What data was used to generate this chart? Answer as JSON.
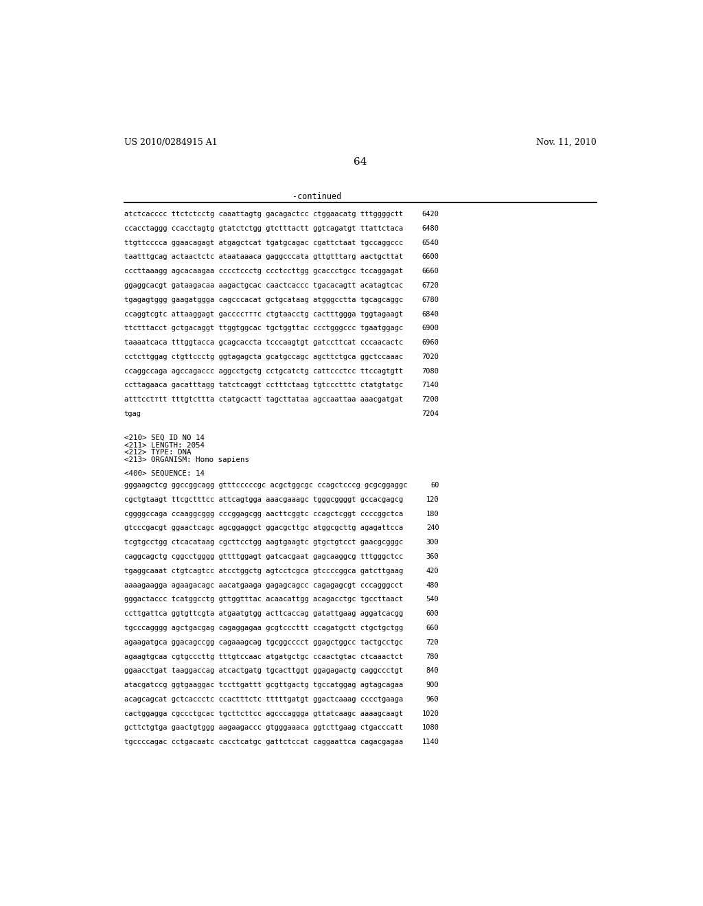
{
  "header_left": "US 2010/0284915 A1",
  "header_right": "Nov. 11, 2010",
  "page_number": "64",
  "continued_label": "-continued",
  "background_color": "#ffffff",
  "text_color": "#000000",
  "sequence_lines_top": [
    [
      "atctcacccc ttctctcctg caaattagtg gacagactcc ctggaacatg tttggggctt",
      "6420"
    ],
    [
      "ccacctaggg ccacctagtg gtatctctgg gtctttactt ggtcagatgt ttattctaca",
      "6480"
    ],
    [
      "ttgttcccca ggaacagagt atgagctcat tgatgcagac cgattctaat tgccaggccc",
      "6540"
    ],
    [
      "taatttgcag actaactctc ataataaaca gaggcccata gttgtttатg aactgcttat",
      "6600"
    ],
    [
      "cccttaaagg agcacaagaa cccctccctg ccctccttgg gcaccctgcc tccaggagat",
      "6660"
    ],
    [
      "ggaggcacgt gataagacaa aagactgcac caactcaccc tgacacagtt acatagtcac",
      "6720"
    ],
    [
      "tgagagtggg gaagatggga cagcccacat gctgcataag atgggcctta tgcagcaggc",
      "6780"
    ],
    [
      "ccaggtcgtc attaaggagt gaccccтттс ctgtaacctg cactttggga tggtagaagt",
      "6840"
    ],
    [
      "ttctttacct gctgacaggt ttggtggcac tgctggttac ccctgggccc tgaatggagc",
      "6900"
    ],
    [
      "taaaatcaca tttggtacca gcagcaccta tcccaagtgt gatccttcat cccaacactc",
      "6960"
    ],
    [
      "cctcttggag ctgttccctg ggtagagcta gcatgccagc agcttctgca ggctccaaac",
      "7020"
    ],
    [
      "ccaggccaga agccagaccc aggcctgctg cctgcatctg cattccctcc ttccagtgtt",
      "7080"
    ],
    [
      "ccttagaaca gacatttagg tatctcaggt cctttctaag tgtccctttc ctatgtatgc",
      "7140"
    ],
    [
      "atttcctтtt tttgtcttta ctatgcactt tagcttataa agccaattaa aaacgatgat",
      "7200"
    ],
    [
      "tgag",
      "7204"
    ]
  ],
  "metadata_lines": [
    "<210> SEQ ID NO 14",
    "<211> LENGTH: 2054",
    "<212> TYPE: DNA",
    "<213> ORGANISM: Homo sapiens"
  ],
  "sequence_label": "<400> SEQUENCE: 14",
  "sequence_lines_bottom": [
    [
      "gggaagctcg ggccggcagg gtttcccccgc acgctggcgc ccagctcccg gcgcggaggc",
      "60"
    ],
    [
      "cgctgtaagt ttcgctttcc attcagtgga aaacgaaagc tgggcggggt gccacgagcg",
      "120"
    ],
    [
      "cggggccaga ccaaggcggg cccggagcgg aacttcggtc ccagctcggt ccccggctca",
      "180"
    ],
    [
      "gtcccgacgt ggaactcagc agcggaggct ggacgcttgc atggcgcttg agagattcca",
      "240"
    ],
    [
      "tcgtgcctgg ctcacataag cgcttcctgg aagtgaagtc gtgctgtcct gaacgcgggc",
      "300"
    ],
    [
      "caggcagctg cggcctgggg gttttggagt gatcacgaat gagcaaggcg tttgggctcc",
      "360"
    ],
    [
      "tgaggcaaat ctgtcagtcc atcctggctg agtcctcgca gtccccggca gatcttgaag",
      "420"
    ],
    [
      "aaaagaagga agaagacagc aacatgaaga gagagcagcc cagagagcgt cccagggcct",
      "480"
    ],
    [
      "gggactaccc tcatggcctg gttggtttac acaacattgg acagacctgc tgccttaact",
      "540"
    ],
    [
      "ccttgattca ggtgttcgta atgaatgtgg acttcaccag gatattgaag aggatcacgg",
      "600"
    ],
    [
      "tgcccagggg agctgacgag cagaggagaa gcgtcccttt ccagatgctt ctgctgctgg",
      "660"
    ],
    [
      "agaagatgca ggacagccgg cagaaagcag tgcggcccct ggagctggcc tactgcctgc",
      "720"
    ],
    [
      "agaagtgcaa cgtgcccttg tttgtccaac atgatgctgc ccaactgtac ctcaaactct",
      "780"
    ],
    [
      "ggaacctgat taaggaccag atcactgatg tgcacttggt ggagagactg caggccctgt",
      "840"
    ],
    [
      "atacgatccg ggtgaaggac tccttgattt gcgttgactg tgccatggag agtagcagaa",
      "900"
    ],
    [
      "acagcagcat gctcaccctc ccactttctc tttttgatgt ggactcaaag cccctgaaga",
      "960"
    ],
    [
      "cactggagga cgccctgcac tgcttcttcc agcccaggga gttatcaagc aaaagcaagt",
      "1020"
    ],
    [
      "gcttctgtga gaactgtggg aagaagaccc gtgggaaaca ggtcttgaag ctgacccatt",
      "1080"
    ],
    [
      "tgccccagac cctgacaatc cacctcatgc gattctccat caggaattca cagacgagaa",
      "1140"
    ]
  ]
}
